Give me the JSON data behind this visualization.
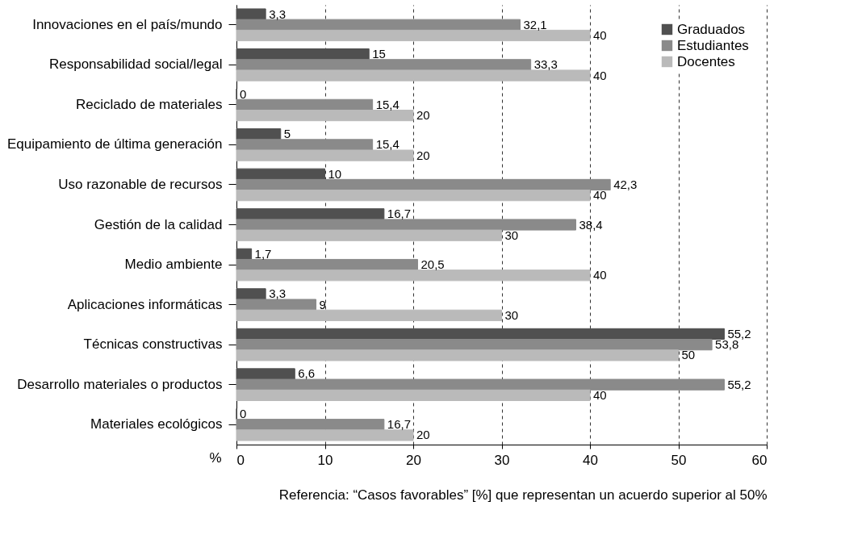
{
  "chart_data": {
    "type": "bar",
    "orientation": "horizontal",
    "categories": [
      "Innovaciones en el país/mundo",
      "Responsabilidad social/legal",
      "Reciclado de materiales",
      "Equipamiento de última generación",
      "Uso razonable de recursos",
      "Gestión de la calidad",
      "Medio ambiente",
      "Aplicaciones informáticas",
      "Técnicas constructivas",
      "Desarrollo materiales o productos",
      "Materiales ecológicos"
    ],
    "series": [
      {
        "name": "Graduados",
        "color": "#505050",
        "values": [
          3.3,
          15,
          0,
          5,
          10,
          16.7,
          1.7,
          3.3,
          55.2,
          6.6,
          0
        ],
        "value_labels": [
          "3,3",
          "15",
          "0",
          "5",
          "10",
          "16,7",
          "1,7",
          "3,3",
          "55,2",
          "6,6",
          "0"
        ]
      },
      {
        "name": "Estudiantes",
        "color": "#8a8a8a",
        "values": [
          32.1,
          33.3,
          15.4,
          15.4,
          42.3,
          38.4,
          20.5,
          9,
          53.8,
          55.2,
          16.7
        ],
        "value_labels": [
          "32,1",
          "33,3",
          "15,4",
          "15,4",
          "42,3",
          "38,4",
          "20,5",
          "9",
          "53,8",
          "55,2",
          "16,7"
        ]
      },
      {
        "name": "Docentes",
        "color": "#bababa",
        "values": [
          40,
          40,
          20,
          20,
          40,
          30,
          40,
          30,
          50,
          40,
          20
        ],
        "value_labels": [
          "40",
          "40",
          "20",
          "20",
          "40",
          "30",
          "40",
          "30",
          "50",
          "40",
          "20"
        ]
      }
    ],
    "xlabel": "%",
    "xlim": [
      0,
      60
    ],
    "xticks": [
      0,
      10,
      20,
      30,
      40,
      50,
      60
    ],
    "grid": "x",
    "legend": "top right",
    "annotations": [
      "Referencia: “Casos favorables” [%] que representan un acuerdo superior al 50%"
    ]
  }
}
